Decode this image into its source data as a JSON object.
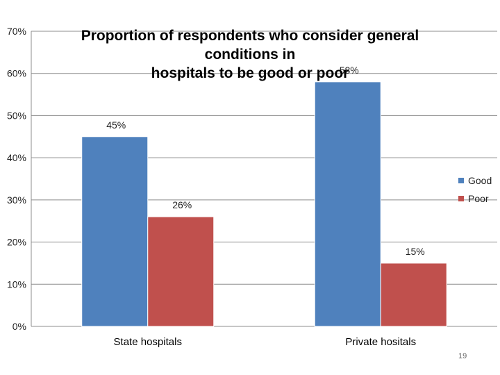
{
  "chart_data": {
    "type": "bar",
    "title": "Proportion of respondents who consider general conditions in hospitals to be good or poor",
    "title_lines": [
      "Proportion of respondents who consider general conditions in",
      "hospitals to be good or poor"
    ],
    "categories": [
      "State hospitals",
      "Private hositals"
    ],
    "series": [
      {
        "name": "Good",
        "values": [
          45,
          58
        ],
        "labels": [
          "45%",
          "58%"
        ],
        "color": "#4F81BD"
      },
      {
        "name": "Poor",
        "values": [
          26,
          15
        ],
        "labels": [
          "26%",
          "15%"
        ],
        "color": "#C0504D"
      }
    ],
    "y_ticks": [
      "0%",
      "10%",
      "20%",
      "30%",
      "40%",
      "50%",
      "60%",
      "70%"
    ],
    "ylim": [
      0,
      70
    ],
    "xlabel": "",
    "ylabel": "",
    "grid": true,
    "legend_position": "right"
  },
  "page_number": "19"
}
